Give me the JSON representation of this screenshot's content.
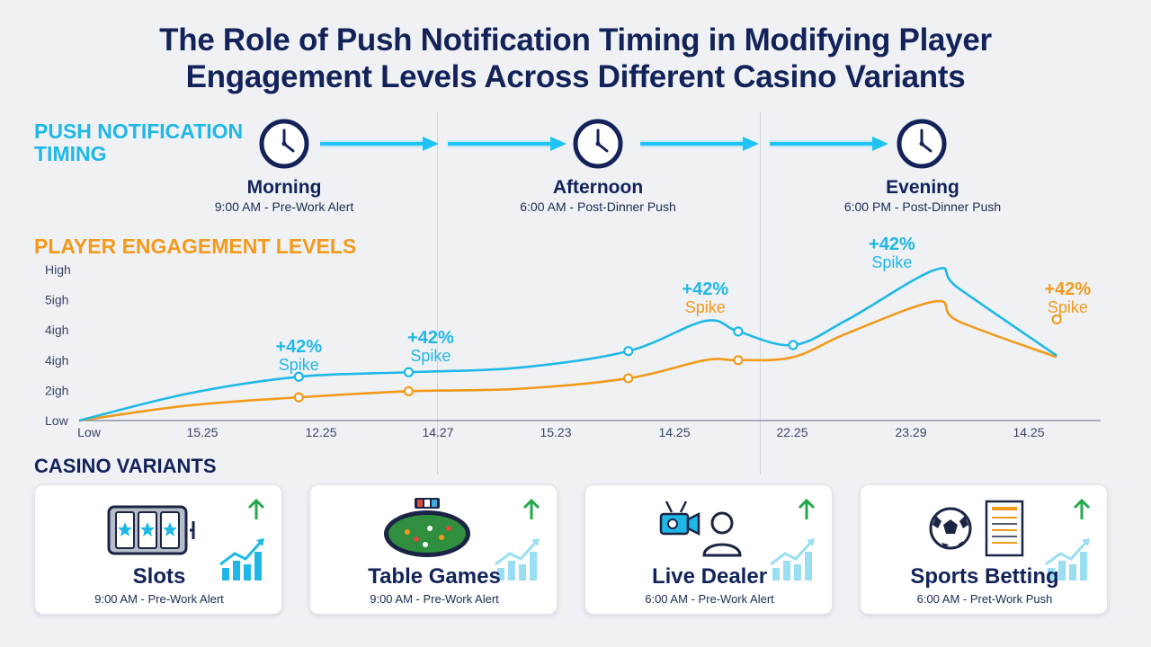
{
  "title": {
    "line1": "The Role of Push Notification Timing in Modifying Player",
    "line2": "Engagement Levels Across Different Casino Variants"
  },
  "sections": {
    "push_timing": "PUSH NOTIFICATION\nTIMING",
    "engagement": "PLAYER ENGAGEMENT LEVELS",
    "casino": "CASINO VARIANTS"
  },
  "timings": [
    {
      "name": "Morning",
      "sub": "9:00 AM - Pre-Work Alert",
      "icon": "clock-icon"
    },
    {
      "name": "Afternoon",
      "sub": "6:00 AM - Post-Dinner Push",
      "icon": "clock-icon"
    },
    {
      "name": "Evening",
      "sub": "6:00 PM - Post-Dinner Push",
      "icon": "clock-icon"
    }
  ],
  "colors": {
    "title": "#13235a",
    "cyan": "#1fb8e6",
    "orange": "#f29a1b",
    "green": "#23a84a"
  },
  "chart_data": {
    "type": "line",
    "title": "PLAYER ENGAGEMENT LEVELS",
    "y_tick_labels": [
      "Low",
      "2igh",
      "4igh",
      "4igh",
      "5igh",
      "High"
    ],
    "x_tick_labels": [
      "Low",
      "15.25",
      "12.25",
      "14.27",
      "15.23",
      "14.25",
      "22.25",
      "23.29",
      "14.25"
    ],
    "ylim": [
      0,
      5
    ],
    "grid": "vertical separators only",
    "series": [
      {
        "color": "#1fb8e6",
        "x": [
          0,
          1,
          2,
          3,
          4,
          5,
          5.7,
          6,
          6.5,
          7,
          7.8,
          8,
          8.9
        ],
        "y": [
          0,
          0.9,
          1.45,
          1.6,
          1.75,
          2.3,
          3.3,
          2.95,
          2.5,
          3.35,
          5.0,
          4.4,
          2.15
        ],
        "markers": [
          2,
          3,
          5,
          7,
          8
        ]
      },
      {
        "color": "#f29a1b",
        "x": [
          0,
          1,
          2,
          3,
          4,
          5,
          5.7,
          6,
          6.5,
          7,
          7.8,
          8,
          8.9
        ],
        "y": [
          0,
          0.5,
          0.77,
          0.97,
          1.05,
          1.4,
          2.0,
          2.0,
          2.1,
          2.9,
          3.95,
          3.3,
          2.1
        ],
        "markers": [
          2,
          3,
          5,
          7
        ]
      }
    ],
    "annotations": [
      {
        "pct": "+42%",
        "word": "Spike",
        "x": 2.0,
        "y": 2.2,
        "color": "#1fb8e6"
      },
      {
        "pct": "+42%",
        "word": "Spike",
        "x": 3.2,
        "y": 2.5,
        "color": "#1fb8e6"
      },
      {
        "pct": "+42%",
        "word": "Spike",
        "x": 5.7,
        "y": 4.1,
        "color": "#f29a1b",
        "pct_color": "#1fb8e6"
      },
      {
        "pct": "+42%",
        "word": "Spike",
        "x": 7.4,
        "y": 5.6,
        "color": "#1fb8e6"
      },
      {
        "pct": "+42%",
        "word": "Spike",
        "x": 9.0,
        "y": 4.1,
        "color": "#f29a1b"
      }
    ],
    "extra_marker": {
      "x": 8.9,
      "y": 3.35,
      "color": "#f29a1b"
    }
  },
  "variants": [
    {
      "name": "Slots",
      "sub": "9:00 AM - Pre-Work Alert",
      "icon": "slot-machine-icon"
    },
    {
      "name": "Table Games",
      "sub": "9:00 AM - Pre-Work Alert",
      "icon": "poker-table-icon"
    },
    {
      "name": "Live Dealer",
      "sub": "6:00 AM - Pre-Work Alert",
      "icon": "video-camera-icon"
    },
    {
      "name": "Sports Betting",
      "sub": "6:00 AM - Pret-Work Push",
      "icon": "soccer-ball-icon"
    }
  ]
}
